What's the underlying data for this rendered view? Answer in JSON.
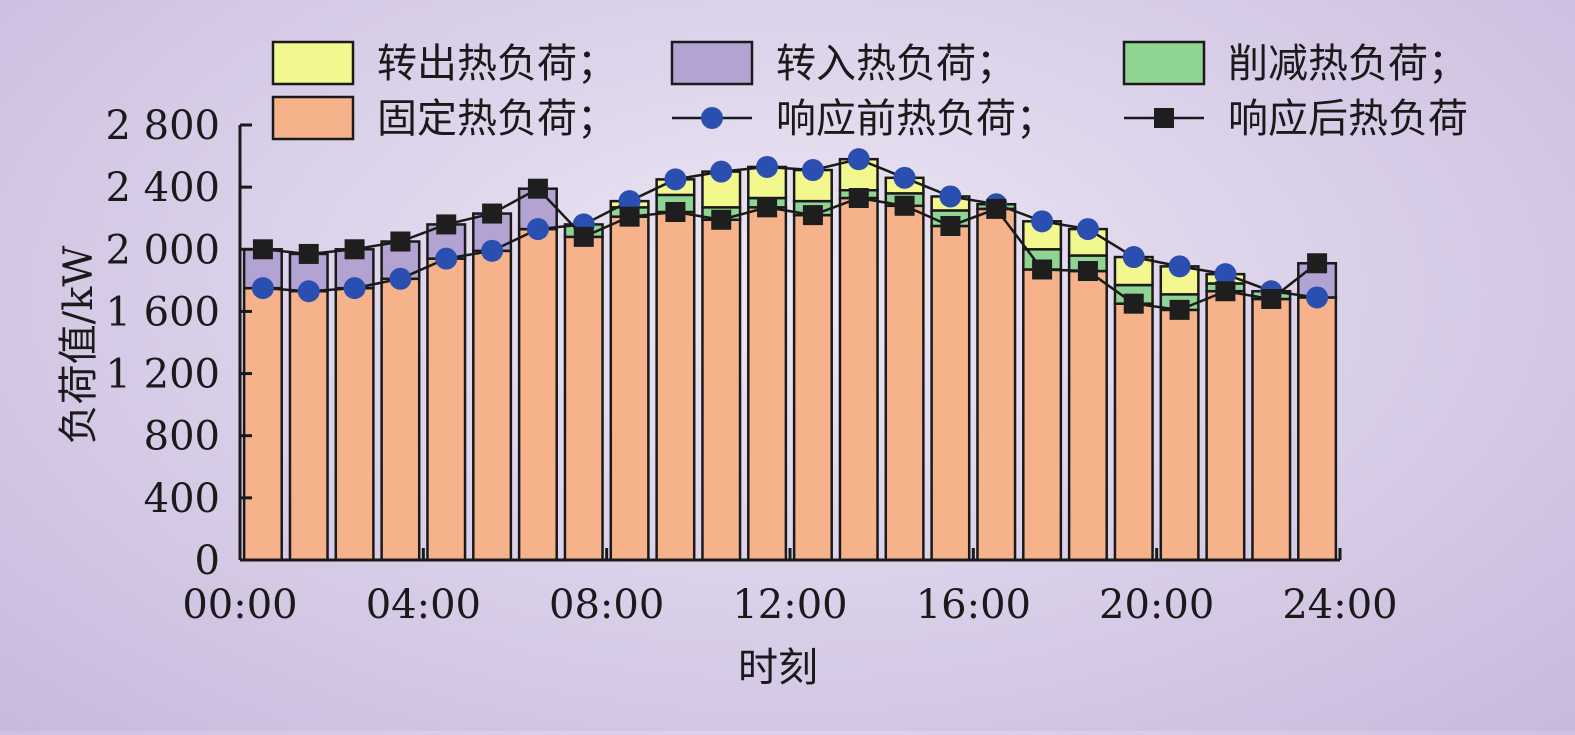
{
  "colors": {
    "transfer_out": "#f2f78e",
    "transfer_in": "#b3a3d3",
    "curtailed": "#8fd492",
    "fixed": "#f6b38b",
    "before_line": "#2b4fb0",
    "after_line": "#1e1e1e",
    "axis": "#1a1a1a"
  },
  "legend": [
    {
      "key": "transfer_out",
      "label": "转出热负荷；",
      "kind": "box",
      "color": "#f2f78e"
    },
    {
      "key": "transfer_in",
      "label": "转入热负荷；",
      "kind": "box",
      "color": "#b3a3d3"
    },
    {
      "key": "curtailed",
      "label": "削减热负荷；",
      "kind": "box",
      "color": "#8fd492"
    },
    {
      "key": "fixed",
      "label": "固定热负荷；",
      "kind": "box",
      "color": "#f6b38b"
    },
    {
      "key": "before",
      "label": "响应前热负荷；",
      "kind": "circle",
      "color": "#2b4fb0"
    },
    {
      "key": "after",
      "label": "响应后热负荷",
      "kind": "square",
      "color": "#1e1e1e"
    }
  ],
  "chart_data": {
    "type": "bar",
    "xlabel": "时刻",
    "ylabel": "负荷值/kW",
    "ylim": [
      0,
      2800
    ],
    "y_ticks": [
      0,
      400,
      800,
      1200,
      1600,
      2000,
      2400,
      2800
    ],
    "y_tick_labels": [
      "0",
      "400",
      "800",
      "1 200",
      "1 600",
      "2 000",
      "2 400",
      "2 800"
    ],
    "xlim": [
      0,
      24
    ],
    "x_ticks": [
      0,
      4,
      8,
      12,
      16,
      20,
      24
    ],
    "x_tick_labels": [
      "00:00",
      "04:00",
      "08:00",
      "12:00",
      "16:00",
      "20:00",
      "24:00"
    ],
    "hours": [
      1,
      2,
      3,
      4,
      5,
      6,
      7,
      8,
      9,
      10,
      11,
      12,
      13,
      14,
      15,
      16,
      17,
      18,
      19,
      20,
      21,
      22,
      23,
      24
    ],
    "series": [
      {
        "name": "固定热负荷",
        "key": "fixed",
        "values": [
          1750,
          1730,
          1750,
          1810,
          1940,
          1990,
          2130,
          2080,
          2210,
          2240,
          2190,
          2270,
          2220,
          2330,
          2280,
          2150,
          2260,
          1870,
          1860,
          1650,
          1610,
          1730,
          1680,
          1690
        ]
      },
      {
        "name": "削减热负荷",
        "key": "curtailed",
        "values": [
          0,
          0,
          0,
          0,
          0,
          0,
          0,
          80,
          60,
          110,
          80,
          60,
          90,
          50,
          80,
          100,
          30,
          130,
          100,
          120,
          100,
          50,
          50,
          0
        ]
      },
      {
        "name": "转出热负荷",
        "key": "transfer_out",
        "values": [
          0,
          0,
          0,
          0,
          0,
          0,
          0,
          0,
          40,
          100,
          230,
          200,
          200,
          200,
          100,
          90,
          0,
          180,
          170,
          180,
          180,
          60,
          0,
          0
        ]
      },
      {
        "name": "转入热负荷",
        "key": "transfer_in",
        "values": [
          250,
          240,
          250,
          240,
          220,
          240,
          260,
          0,
          0,
          0,
          0,
          0,
          0,
          0,
          0,
          0,
          0,
          0,
          0,
          0,
          0,
          0,
          0,
          220
        ]
      },
      {
        "name": "响应前热负荷",
        "key": "before",
        "values": [
          1750,
          1730,
          1750,
          1810,
          1940,
          1990,
          2130,
          2160,
          2310,
          2450,
          2500,
          2530,
          2510,
          2580,
          2460,
          2340,
          2290,
          2180,
          2130,
          1950,
          1890,
          1840,
          1730,
          1690
        ]
      },
      {
        "name": "响应后热负荷",
        "key": "after",
        "values": [
          2000,
          1970,
          2000,
          2050,
          2160,
          2230,
          2390,
          2080,
          2210,
          2240,
          2190,
          2270,
          2220,
          2330,
          2280,
          2150,
          2260,
          1870,
          1860,
          1650,
          1610,
          1730,
          1680,
          1910
        ]
      }
    ]
  }
}
